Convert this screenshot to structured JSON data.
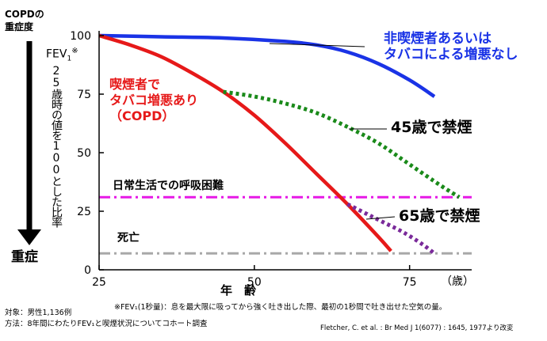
{
  "severity_header": "COPDの\n重症度",
  "severity_bottom": "重症",
  "y_axis_title": {
    "fev": "FEV",
    "fev_sub": "1",
    "fev_mark": "※",
    "text": "25歳時の値を100とした比率"
  },
  "x_axis_title": "年　齢",
  "x_unit": "（歳）",
  "notes": {
    "footnote": "※FEV₁(1秒量)：息を最大限に吸ってから強く吐き出した際、最初の1秒間で吐き出せた空気の量。",
    "subjects": "対象：男性1,136例",
    "method": "方法：8年間にわたりFEV₁と喫煙状況についてコホート調査",
    "citation": "Fletcher, C. et al. : Br Med J 1(6077) : 1645, 1977より改変"
  },
  "labels": {
    "nonsmoker": [
      "非喫煙者あるいは",
      "タバコによる増悪なし"
    ],
    "smoker": [
      "喫煙者で",
      "タバコ増悪あり",
      "（COPD）"
    ],
    "quit45": "45歳で禁煙",
    "quit65": "65歳で禁煙",
    "disability": "日常生活での呼吸困難",
    "death": "死亡"
  },
  "colors": {
    "nonsmoker": "#1a33e6",
    "smoker": "#e61919",
    "quit45": "#1a8a1a",
    "quit65": "#7a2a9a",
    "disability": "#e619e6",
    "death": "#a8a8a8",
    "label_red": "#e61919",
    "label_blue": "#1a33e6"
  },
  "chart_data": {
    "type": "line",
    "xlabel": "年　齢",
    "ylabel": "FEV1※ 25歳時の値を100とした比率",
    "xlim": [
      25,
      85
    ],
    "ylim": [
      0,
      100
    ],
    "x_ticks": [
      25,
      50,
      75
    ],
    "y_ticks": [
      0,
      25,
      50,
      75,
      100
    ],
    "series": [
      {
        "name": "非喫煙者あるいはタバコによる増悪なし",
        "style": "solid",
        "x": [
          25,
          35,
          45,
          55,
          60,
          65,
          70,
          75,
          79
        ],
        "y": [
          100,
          99.5,
          99,
          97.5,
          96,
          93,
          88,
          81,
          74
        ]
      },
      {
        "name": "喫煙者でタバコ増悪あり（COPD）",
        "style": "solid",
        "x": [
          25,
          30,
          35,
          40,
          45,
          50,
          55,
          60,
          65,
          70,
          72
        ],
        "y": [
          100,
          96,
          91,
          84,
          76,
          66,
          54,
          41,
          28,
          14,
          8
        ]
      },
      {
        "name": "45歳で禁煙",
        "style": "dotted",
        "x": [
          45,
          50,
          55,
          60,
          65,
          70,
          75,
          80,
          83
        ],
        "y": [
          76,
          74,
          71,
          67,
          61,
          54,
          45,
          36,
          31
        ]
      },
      {
        "name": "65歳で禁煙",
        "style": "dotted",
        "x": [
          65,
          68,
          71,
          74,
          77,
          79
        ],
        "y": [
          28,
          24,
          20,
          16,
          11,
          7
        ]
      }
    ],
    "reference_lines": [
      {
        "name": "日常生活での呼吸困難",
        "y": 31,
        "style": "dash-dot"
      },
      {
        "name": "死亡",
        "y": 7,
        "style": "dash-dot"
      }
    ]
  }
}
